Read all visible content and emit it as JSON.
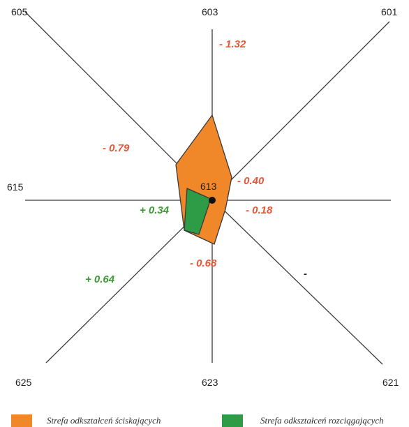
{
  "center": {
    "label": "613"
  },
  "points": {
    "p605": "605",
    "p603": "603",
    "p601": "601",
    "p615": "615",
    "p625": "625",
    "p623": "623",
    "p621": "621"
  },
  "values": {
    "v603": "- 1.32",
    "v605": "- 0.79",
    "v601": "- 0.40",
    "v615": "+ 0.34",
    "v621a": "- 0.18",
    "v623": "- 0.68",
    "v625": "+ 0.64",
    "v621b": "-"
  },
  "colors": {
    "compression": "#F0882A",
    "tension": "#2E9B47",
    "negative_text": "#E8563A",
    "positive_text": "#3E9A35",
    "lines": "#3a3a3a"
  },
  "legend": {
    "compression": "Strefa odkształceń ściskających",
    "tension": "Strefa odkształceń rozciągających"
  }
}
